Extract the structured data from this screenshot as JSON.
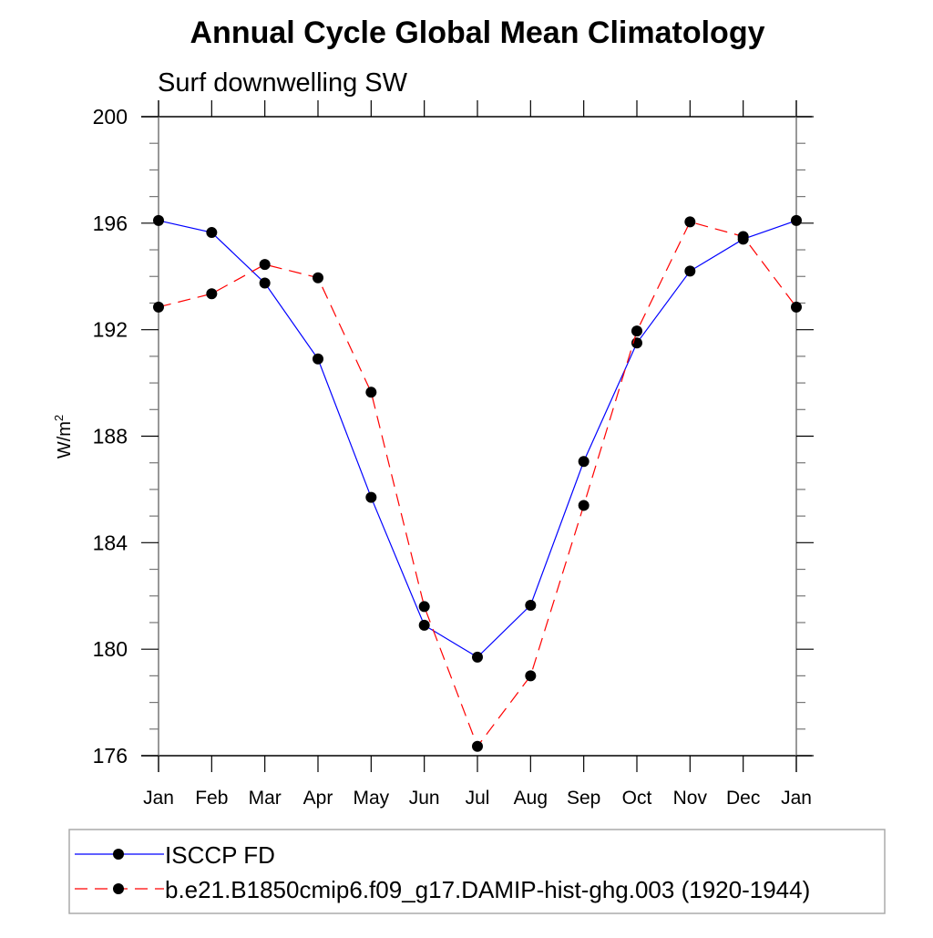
{
  "chart_data": {
    "type": "line",
    "title": "Annual Cycle Global Mean Climatology",
    "subtitle": "Surf downwelling SW",
    "ylabel": "W/m",
    "ylabel_superscript": "2",
    "xlabel": "",
    "categories": [
      "Jan",
      "Feb",
      "Mar",
      "Apr",
      "May",
      "Jun",
      "Jul",
      "Aug",
      "Sep",
      "Oct",
      "Nov",
      "Dec",
      "Jan"
    ],
    "ylim": [
      176,
      200
    ],
    "yticks": [
      176,
      180,
      184,
      188,
      192,
      196,
      200
    ],
    "yminor_step": 1,
    "grid": false,
    "legend_placement": "bottom",
    "series": [
      {
        "name": "ISCCP FD",
        "color": "#0000ff",
        "dash": "solid",
        "marker": "filled-circle",
        "values": [
          196.1,
          195.65,
          193.75,
          190.9,
          185.7,
          180.9,
          179.7,
          181.65,
          187.05,
          191.5,
          194.2,
          195.4,
          196.1
        ]
      },
      {
        "name": "b.e21.B1850cmip6.f09_g17.DAMIP-hist-ghg.003 (1920-1944)",
        "color": "#ff0000",
        "dash": "dashed",
        "marker": "filled-circle",
        "values": [
          192.85,
          193.35,
          194.45,
          193.95,
          189.65,
          181.6,
          176.35,
          179.0,
          185.4,
          191.95,
          196.05,
          195.5,
          192.85
        ]
      }
    ]
  }
}
